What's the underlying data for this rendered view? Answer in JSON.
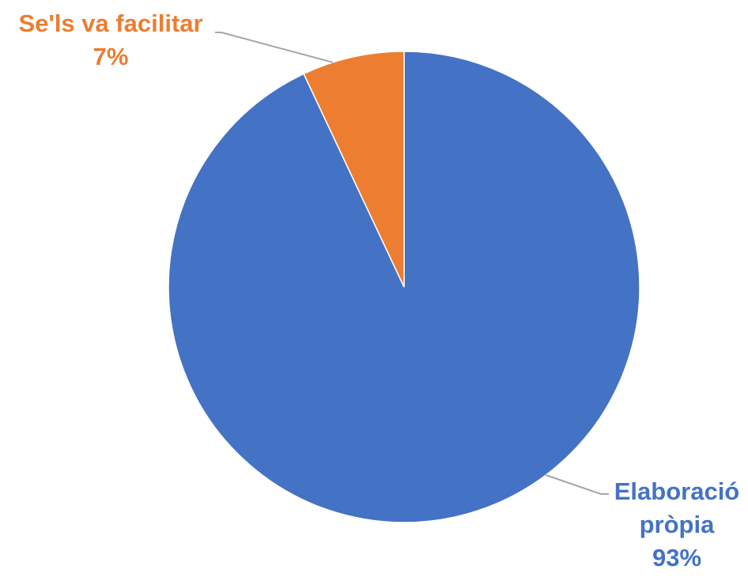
{
  "chart_data": {
    "type": "pie",
    "title": "",
    "slices": [
      {
        "label_lines": [
          "Elaboració",
          "pròpia"
        ],
        "value": 93,
        "pct_label": "93%",
        "color": "#4472C4"
      },
      {
        "label_lines": [
          "Se'ls va facilitar"
        ],
        "value": 7,
        "pct_label": "7%",
        "color": "#ED7D31"
      }
    ],
    "leader_line_color": "#A6A6A6",
    "start_angle_deg": 0,
    "direction": "clockwise",
    "data_labels": "outside-with-leader-lines"
  }
}
